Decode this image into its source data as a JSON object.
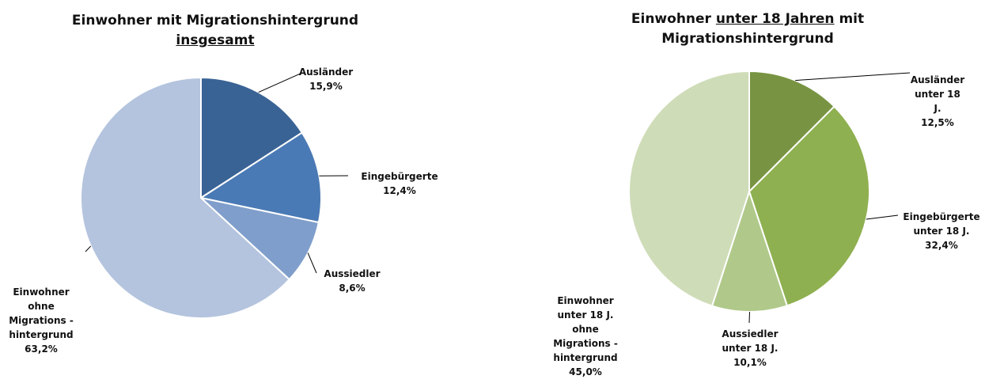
{
  "chart_data": [
    {
      "type": "pie",
      "title_parts": [
        {
          "text": "Einwohner mit Migrationshintergrund",
          "underline": false
        },
        {
          "text": "insgesamt",
          "underline": true
        }
      ],
      "categories": [
        "Ausländer",
        "Eingebürgerte",
        "Aussiedler",
        "Einwohner\nohne\nMigrations -\nhintergrund"
      ],
      "values": [
        15.9,
        12.4,
        8.6,
        63.2
      ],
      "value_labels": [
        "15,9%",
        "12,4%",
        "8,6%",
        "63,2%"
      ],
      "colors": [
        "#3a6395",
        "#4a7ab5",
        "#7f9ecb",
        "#b4c4de"
      ]
    },
    {
      "type": "pie",
      "title_parts": [
        {
          "text": "Einwohner",
          "underline": false
        },
        {
          "text": "unter 18 Jahren",
          "underline": true
        },
        {
          "text": "mit Migrationshintergrund",
          "underline": false
        }
      ],
      "categories": [
        "Ausländer\nunter 18 J.",
        "Eingebürgerte\nunter 18 J.",
        "Aussiedler\nunter 18 J.",
        "Einwohner\nunter 18 J.\nohne\nMigrations -\nhintergrund"
      ],
      "values": [
        12.5,
        32.4,
        10.1,
        45.0
      ],
      "value_labels": [
        "12,5%",
        "32,4%",
        "10,1%",
        "45,0%"
      ],
      "colors": [
        "#789442",
        "#8fb050",
        "#b0c98a",
        "#cfdcb8"
      ]
    }
  ]
}
